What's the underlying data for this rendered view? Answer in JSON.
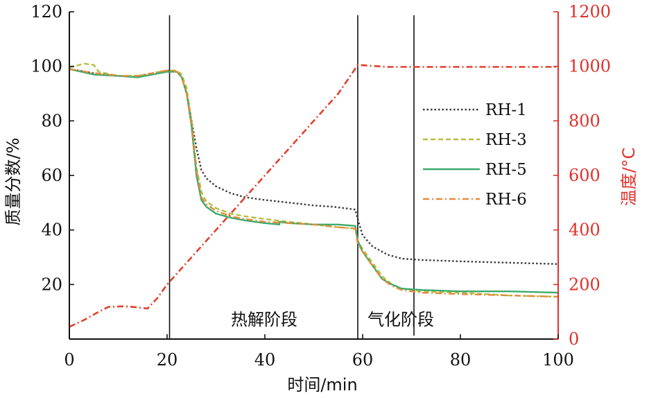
{
  "chart_data": {
    "type": "line",
    "title": "",
    "xlabel": "时间/min",
    "ylabel": "质量分数/%",
    "ylabel_right": "温度/°C",
    "xlim": [
      0,
      100
    ],
    "ylim": [
      0,
      120
    ],
    "ylim_right": [
      0,
      1200
    ],
    "x_ticks": [
      "0",
      "20",
      "40",
      "60",
      "80",
      "100"
    ],
    "y_ticks": [
      "20",
      "40",
      "60",
      "80",
      "100",
      "120"
    ],
    "y_ticks_right": [
      "0",
      "200",
      "400",
      "600",
      "800",
      "1000",
      "1200"
    ],
    "grid": false,
    "legend_position": "center-right",
    "vertical_lines": [
      20.5,
      59,
      70.5
    ],
    "annotations": [
      {
        "text": "热解阶段",
        "x": 39,
        "y": 7
      },
      {
        "text": "气化阶段",
        "x": 66,
        "y": 7
      }
    ],
    "series": [
      {
        "name": "RH-1",
        "axis": "left",
        "color": "#3a3a3a",
        "style": "dotted",
        "points": [
          [
            0,
            99
          ],
          [
            5,
            97.5
          ],
          [
            10,
            96.5
          ],
          [
            14,
            96
          ],
          [
            17,
            97.5
          ],
          [
            20,
            98.5
          ],
          [
            22,
            98
          ],
          [
            23,
            96
          ],
          [
            24,
            90
          ],
          [
            25,
            80
          ],
          [
            26,
            70
          ],
          [
            27,
            62
          ],
          [
            28,
            59
          ],
          [
            30,
            56
          ],
          [
            33,
            53.5
          ],
          [
            36,
            52
          ],
          [
            40,
            51
          ],
          [
            45,
            50
          ],
          [
            50,
            49
          ],
          [
            54,
            48.5
          ],
          [
            58.5,
            47.5
          ],
          [
            59,
            44
          ],
          [
            60,
            38
          ],
          [
            62,
            34
          ],
          [
            65,
            31
          ],
          [
            68,
            29.5
          ],
          [
            72,
            29
          ],
          [
            80,
            28.5
          ],
          [
            90,
            28
          ],
          [
            100,
            27.5
          ]
        ]
      },
      {
        "name": "RH-3",
        "axis": "left",
        "color": "#b5bd3c",
        "style": "dashed",
        "points": [
          [
            0,
            99.5
          ],
          [
            3,
            101
          ],
          [
            5,
            100.5
          ],
          [
            6,
            98
          ],
          [
            10,
            96.5
          ],
          [
            14,
            96.5
          ],
          [
            17,
            97.5
          ],
          [
            20,
            98.5
          ],
          [
            22,
            98.5
          ],
          [
            23,
            97
          ],
          [
            24,
            92
          ],
          [
            25,
            80
          ],
          [
            26,
            63
          ],
          [
            27,
            54
          ],
          [
            28,
            50.5
          ],
          [
            30,
            48
          ],
          [
            33,
            46
          ],
          [
            36,
            45
          ],
          [
            40,
            44
          ],
          [
            45,
            43
          ],
          [
            50,
            42
          ],
          [
            55,
            41
          ],
          [
            58.5,
            40.5
          ],
          [
            59,
            36
          ],
          [
            60,
            33
          ],
          [
            62,
            28
          ],
          [
            64,
            23
          ],
          [
            66,
            20
          ],
          [
            68,
            18.5
          ],
          [
            72,
            17.5
          ],
          [
            80,
            17
          ],
          [
            90,
            16
          ],
          [
            100,
            15.5
          ]
        ]
      },
      {
        "name": "RH-5",
        "axis": "left",
        "color": "#3aaa6c",
        "style": "solid",
        "points": [
          [
            0,
            99
          ],
          [
            5,
            97
          ],
          [
            10,
            96.5
          ],
          [
            14,
            96
          ],
          [
            17,
            97
          ],
          [
            20,
            98
          ],
          [
            22,
            98
          ],
          [
            23,
            96
          ],
          [
            24,
            90
          ],
          [
            25,
            78
          ],
          [
            26,
            60
          ],
          [
            27,
            51
          ],
          [
            28,
            48.5
          ],
          [
            30,
            46
          ],
          [
            33,
            44.5
          ],
          [
            36,
            43.5
          ],
          [
            40,
            42.5
          ],
          [
            43,
            42
          ],
          [
            43,
            43
          ],
          [
            45,
            42.5
          ],
          [
            50,
            42
          ],
          [
            55,
            42
          ],
          [
            58.5,
            41.5
          ],
          [
            59,
            36
          ],
          [
            60,
            32
          ],
          [
            62,
            27
          ],
          [
            64,
            22
          ],
          [
            66,
            20
          ],
          [
            68,
            18.5
          ],
          [
            72,
            18
          ],
          [
            80,
            17.5
          ],
          [
            90,
            17.5
          ],
          [
            100,
            17
          ]
        ]
      },
      {
        "name": "RH-6",
        "axis": "left",
        "color": "#e58a3c",
        "style": "dashdot",
        "points": [
          [
            0,
            99
          ],
          [
            5,
            97.5
          ],
          [
            10,
            96.5
          ],
          [
            14,
            96.5
          ],
          [
            17,
            97.5
          ],
          [
            20,
            98.5
          ],
          [
            22,
            98
          ],
          [
            23,
            96
          ],
          [
            24,
            90
          ],
          [
            25,
            79
          ],
          [
            26,
            62
          ],
          [
            27,
            52
          ],
          [
            28,
            49.5
          ],
          [
            30,
            47
          ],
          [
            33,
            45
          ],
          [
            36,
            44
          ],
          [
            40,
            43
          ],
          [
            45,
            42.5
          ],
          [
            50,
            42
          ],
          [
            55,
            41
          ],
          [
            58.5,
            40.5
          ],
          [
            59,
            35
          ],
          [
            60,
            32
          ],
          [
            62,
            27
          ],
          [
            64,
            22
          ],
          [
            66,
            19.5
          ],
          [
            68,
            18
          ],
          [
            72,
            17
          ],
          [
            80,
            16.5
          ],
          [
            90,
            16
          ],
          [
            100,
            15.5
          ]
        ]
      },
      {
        "name": "温度",
        "axis": "right",
        "color": "#e0402a",
        "style": "dashdot",
        "legend": false,
        "points": [
          [
            0,
            45
          ],
          [
            3,
            70
          ],
          [
            6,
            100
          ],
          [
            8,
            118
          ],
          [
            11,
            120
          ],
          [
            13,
            118
          ],
          [
            15,
            114
          ],
          [
            16,
            112
          ],
          [
            18,
            150
          ],
          [
            20,
            200
          ],
          [
            25,
            300
          ],
          [
            30,
            400
          ],
          [
            35,
            500
          ],
          [
            40,
            600
          ],
          [
            45,
            700
          ],
          [
            50,
            800
          ],
          [
            55,
            900
          ],
          [
            59,
            1005
          ],
          [
            61,
            1003
          ],
          [
            65,
            998
          ],
          [
            70,
            998
          ],
          [
            80,
            998
          ],
          [
            90,
            998
          ],
          [
            100,
            998
          ]
        ]
      }
    ]
  }
}
